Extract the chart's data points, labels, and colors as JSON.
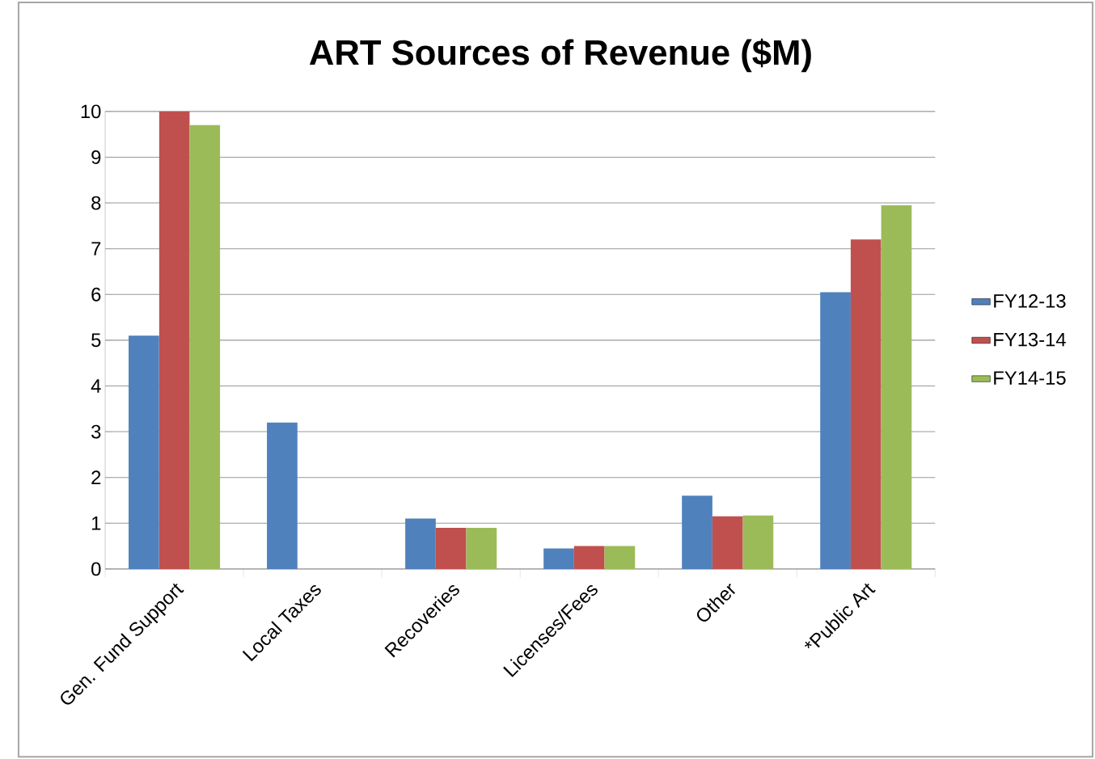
{
  "chart_data": {
    "type": "bar",
    "title": "ART Sources of Revenue ($M)",
    "categories": [
      "Gen. Fund Support",
      "Local Taxes",
      "Recoveries",
      "Licenses/Fees",
      "Other",
      "*Public Art"
    ],
    "series": [
      {
        "name": "FY12-13",
        "color": "#4f81bd",
        "values": [
          5.1,
          3.2,
          1.1,
          0.45,
          1.6,
          6.05
        ]
      },
      {
        "name": "FY13-14",
        "color": "#c0504d",
        "values": [
          10.0,
          null,
          0.9,
          0.5,
          1.15,
          7.2
        ]
      },
      {
        "name": "FY14-15",
        "color": "#9bbb59",
        "values": [
          9.7,
          null,
          0.9,
          0.5,
          1.17,
          7.95
        ]
      }
    ],
    "ylim": [
      0,
      10
    ],
    "yticks": [
      0,
      1,
      2,
      3,
      4,
      5,
      6,
      7,
      8,
      9,
      10
    ],
    "grid": "y",
    "legend": "right"
  }
}
